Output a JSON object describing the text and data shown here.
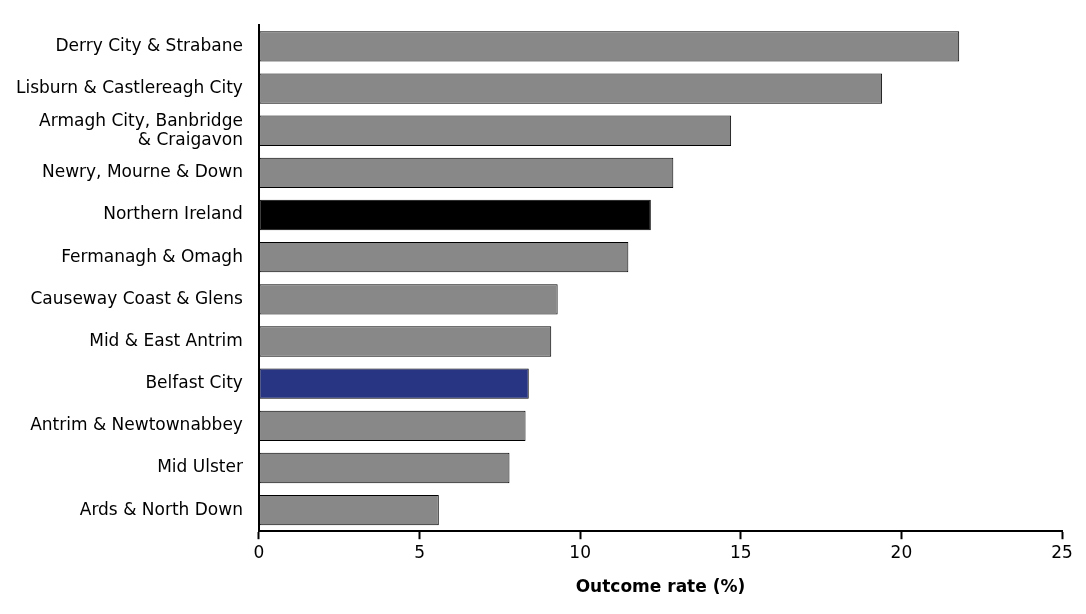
{
  "chart_data": {
    "type": "bar",
    "orientation": "horizontal",
    "xlabel": "Outcome rate (%)",
    "categories": [
      "Derry City & Strabane",
      "Lisburn & Castlereagh City",
      "Armagh City, Banbridge\n& Craigavon",
      "Newry, Mourne & Down",
      "Northern Ireland",
      "Fermanagh & Omagh",
      "Causeway Coast & Glens",
      "Mid & East Antrim",
      "Belfast City",
      "Antrim & Newtownabbey",
      "Mid Ulster",
      "Ards & North Down"
    ],
    "values": [
      21.8,
      19.4,
      14.7,
      12.9,
      12.2,
      11.5,
      9.3,
      9.1,
      8.4,
      8.3,
      7.8,
      5.6
    ],
    "colors": [
      "#888888",
      "#888888",
      "#888888",
      "#888888",
      "#000000",
      "#888888",
      "#888888",
      "#888888",
      "#283583",
      "#888888",
      "#888888",
      "#888888"
    ],
    "xlim": [
      0,
      25
    ],
    "xticks": [
      0,
      5,
      10,
      15,
      20,
      25
    ],
    "grid": false,
    "legend": false
  }
}
